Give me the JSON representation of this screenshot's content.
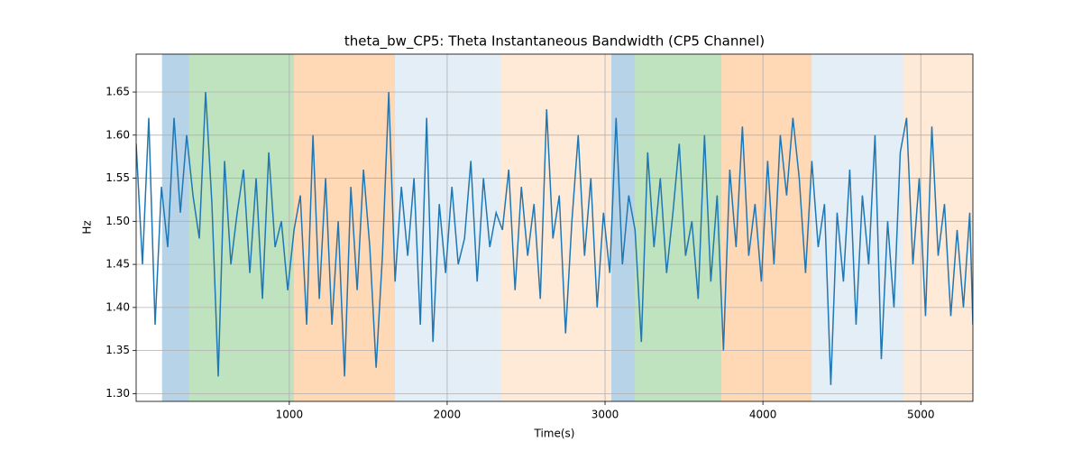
{
  "chart_data": {
    "type": "line",
    "title": "theta_bw_CP5: Theta Instantaneous Bandwidth (CP5 Channel)",
    "xlabel": "Time(s)",
    "ylabel": "Hz",
    "xlim": [
      30,
      5330
    ],
    "ylim": [
      1.291,
      1.694
    ],
    "xticks": [
      1000,
      2000,
      3000,
      4000,
      5000
    ],
    "yticks": [
      {
        "value": 1.3,
        "label": "1.30"
      },
      {
        "value": 1.35,
        "label": "1.35"
      },
      {
        "value": 1.4,
        "label": "1.40"
      },
      {
        "value": 1.45,
        "label": "1.45"
      },
      {
        "value": 1.5,
        "label": "1.50"
      },
      {
        "value": 1.55,
        "label": "1.55"
      },
      {
        "value": 1.6,
        "label": "1.60"
      },
      {
        "value": 1.65,
        "label": "1.65"
      }
    ],
    "grid": true,
    "regions": [
      {
        "start": 194,
        "end": 366,
        "color": "rgba(31,119,180,0.32)"
      },
      {
        "start": 366,
        "end": 1029,
        "color": "rgba(44,160,44,0.3)"
      },
      {
        "start": 1029,
        "end": 1669,
        "color": "rgba(255,127,14,0.3)"
      },
      {
        "start": 1669,
        "end": 2343,
        "color": "rgba(31,119,180,0.12)"
      },
      {
        "start": 2343,
        "end": 3040,
        "color": "rgba(255,127,14,0.16)"
      },
      {
        "start": 3040,
        "end": 3189,
        "color": "rgba(31,119,180,0.32)"
      },
      {
        "start": 3189,
        "end": 3737,
        "color": "rgba(44,160,44,0.3)"
      },
      {
        "start": 3737,
        "end": 4309,
        "color": "rgba(255,127,14,0.3)"
      },
      {
        "start": 4309,
        "end": 4891,
        "color": "rgba(31,119,180,0.12)"
      },
      {
        "start": 4891,
        "end": 5330,
        "color": "rgba(255,127,14,0.16)"
      }
    ],
    "x": [
      30,
      70,
      110,
      150,
      190,
      230,
      270,
      310,
      350,
      390,
      430,
      470,
      510,
      550,
      590,
      630,
      670,
      710,
      750,
      790,
      830,
      870,
      910,
      950,
      990,
      1030,
      1070,
      1110,
      1150,
      1190,
      1230,
      1270,
      1310,
      1350,
      1390,
      1430,
      1470,
      1510,
      1550,
      1590,
      1630,
      1670,
      1710,
      1750,
      1790,
      1830,
      1870,
      1910,
      1950,
      1990,
      2030,
      2070,
      2110,
      2150,
      2190,
      2230,
      2270,
      2310,
      2350,
      2390,
      2430,
      2470,
      2510,
      2550,
      2590,
      2630,
      2670,
      2710,
      2750,
      2790,
      2830,
      2870,
      2910,
      2950,
      2990,
      3030,
      3070,
      3110,
      3150,
      3190,
      3230,
      3270,
      3310,
      3350,
      3390,
      3430,
      3470,
      3510,
      3550,
      3590,
      3630,
      3670,
      3710,
      3750,
      3790,
      3830,
      3870,
      3910,
      3950,
      3990,
      4030,
      4070,
      4110,
      4150,
      4190,
      4230,
      4270,
      4310,
      4350,
      4390,
      4430,
      4470,
      4510,
      4550,
      4590,
      4630,
      4670,
      4710,
      4750,
      4790,
      4830,
      4870,
      4910,
      4950,
      4990,
      5030,
      5070,
      5110,
      5150,
      5190,
      5230,
      5270,
      5310,
      5330
    ],
    "color": "#1f77b4",
    "values": [
      1.59,
      1.45,
      1.62,
      1.38,
      1.54,
      1.47,
      1.62,
      1.51,
      1.6,
      1.53,
      1.48,
      1.65,
      1.52,
      1.32,
      1.57,
      1.45,
      1.51,
      1.56,
      1.44,
      1.55,
      1.41,
      1.58,
      1.47,
      1.5,
      1.42,
      1.49,
      1.53,
      1.38,
      1.6,
      1.41,
      1.55,
      1.38,
      1.5,
      1.32,
      1.54,
      1.42,
      1.56,
      1.47,
      1.33,
      1.46,
      1.65,
      1.43,
      1.54,
      1.46,
      1.55,
      1.38,
      1.62,
      1.36,
      1.52,
      1.44,
      1.54,
      1.45,
      1.48,
      1.57,
      1.43,
      1.55,
      1.47,
      1.51,
      1.49,
      1.56,
      1.42,
      1.54,
      1.46,
      1.52,
      1.41,
      1.63,
      1.48,
      1.53,
      1.37,
      1.5,
      1.6,
      1.46,
      1.55,
      1.4,
      1.51,
      1.44,
      1.62,
      1.45,
      1.53,
      1.49,
      1.36,
      1.58,
      1.47,
      1.55,
      1.44,
      1.51,
      1.59,
      1.46,
      1.5,
      1.41,
      1.6,
      1.43,
      1.53,
      1.35,
      1.56,
      1.47,
      1.61,
      1.46,
      1.52,
      1.43,
      1.57,
      1.45,
      1.6,
      1.53,
      1.62,
      1.55,
      1.44,
      1.57,
      1.47,
      1.52,
      1.31,
      1.51,
      1.43,
      1.56,
      1.38,
      1.53,
      1.45,
      1.6,
      1.34,
      1.5,
      1.4,
      1.58,
      1.62,
      1.45,
      1.55,
      1.39,
      1.61,
      1.46,
      1.52,
      1.39,
      1.49,
      1.4,
      1.51,
      1.38
    ]
  }
}
